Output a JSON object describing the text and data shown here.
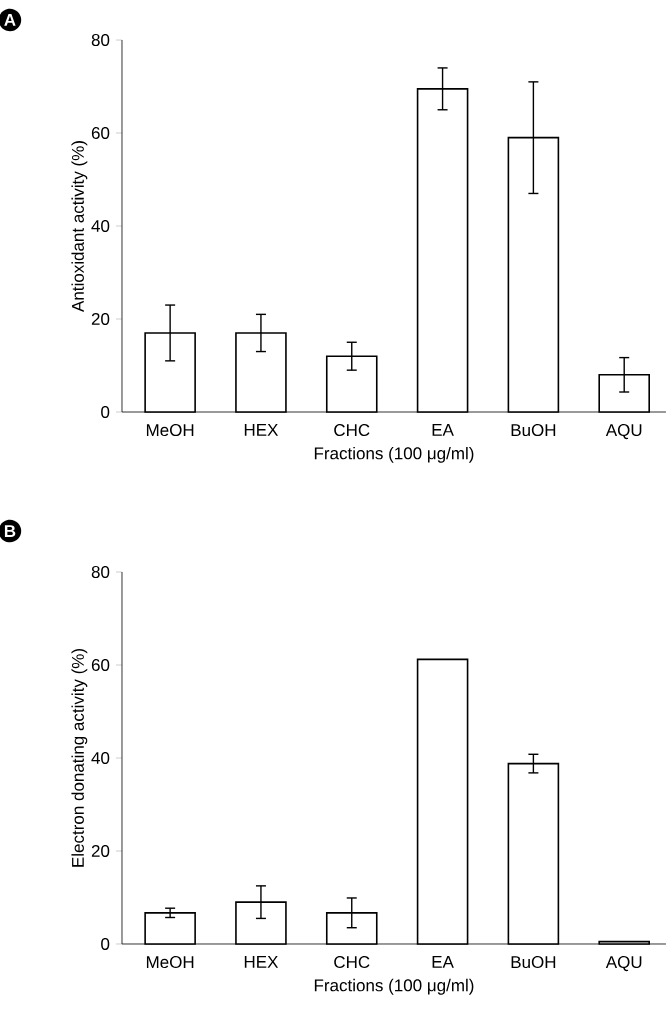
{
  "chart_data": [
    {
      "type": "bar",
      "annotations": [
        "A"
      ],
      "xlabel": "Fractions (100 μg/ml)",
      "ylabel": "Antioxidant activity (%)",
      "categories": [
        "MeOH",
        "HEX",
        "CHC",
        "EA",
        "BuOH",
        "AQU"
      ],
      "values": [
        17,
        17,
        12,
        69.5,
        59,
        8
      ],
      "errors": [
        6,
        4,
        3,
        4.5,
        12,
        3.7
      ],
      "color": "#ffffff",
      "ylim": [
        0,
        80
      ],
      "yticks": [
        0,
        20,
        40,
        60,
        80
      ],
      "grid": false
    },
    {
      "type": "bar",
      "annotations": [
        "B"
      ],
      "xlabel": "Fractions (100 μg/ml)",
      "ylabel": "Electron donating activity (%)",
      "categories": [
        "MeOH",
        "HEX",
        "CHC",
        "EA",
        "BuOH",
        "AQU"
      ],
      "values": [
        6.7,
        9,
        6.7,
        61.2,
        38.8,
        0.5
      ],
      "errors": [
        1,
        3.5,
        3.2,
        null,
        2,
        null
      ],
      "color": "#ffffff",
      "ylim": [
        0,
        80
      ],
      "yticks": [
        0,
        20,
        40,
        60,
        80
      ],
      "grid": false
    }
  ]
}
